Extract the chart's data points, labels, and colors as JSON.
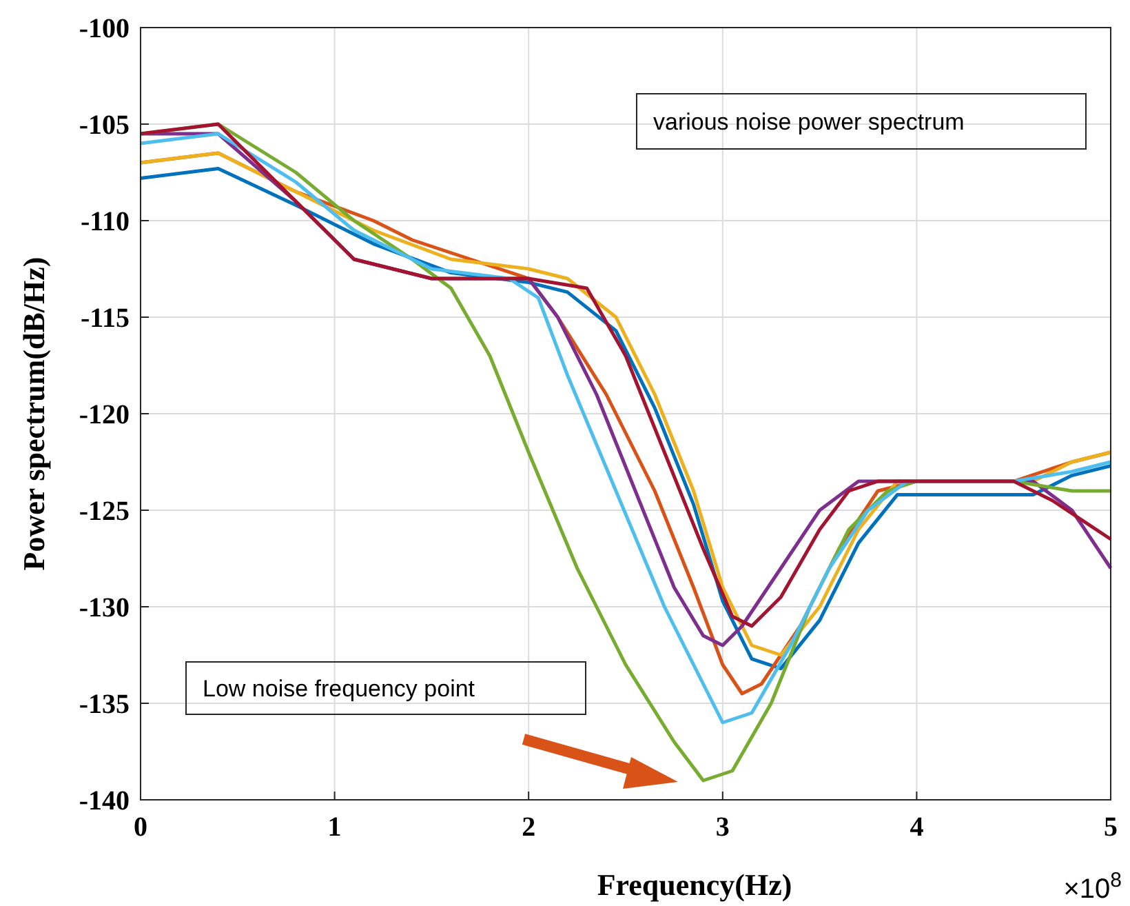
{
  "chart_data": {
    "type": "line",
    "xlabel": "Frequency(Hz)",
    "ylabel": "Power spectrum(dB/Hz)",
    "annotations": [
      "various noise power spectrum",
      "Low noise frequency point",
      "×10$^{8}$"
    ],
    "xlim": [
      0,
      5
    ],
    "xticks": [
      0,
      1,
      2,
      3,
      4,
      5
    ],
    "ylim": [
      -140,
      -100
    ],
    "yticks": [
      -140,
      -135,
      -130,
      -125,
      -120,
      -115,
      -110,
      -105,
      -100
    ],
    "grid": true,
    "line_style": "solid",
    "series": [
      {
        "color": "#0072bd",
        "x": [
          0,
          0.4,
          0.8,
          1.2,
          1.6,
          2.0,
          2.2,
          2.45,
          2.65,
          2.85,
          3.0,
          3.15,
          3.3,
          3.5,
          3.7,
          3.9,
          4.2,
          4.6,
          4.8,
          5
        ],
        "values": [
          -107.8,
          -107.3,
          -109.2,
          -111.2,
          -112.7,
          -113.2,
          -113.7,
          -115.7,
          -119.7,
          -124.7,
          -129.7,
          -132.7,
          -133.2,
          -130.7,
          -126.7,
          -124.2,
          -124.2,
          -124.2,
          -123.2,
          -122.7
        ]
      },
      {
        "color": "#d95319",
        "x": [
          0,
          0.4,
          0.8,
          1.2,
          1.4,
          1.7,
          2.0,
          2.15,
          2.4,
          2.65,
          2.85,
          3.0,
          3.1,
          3.2,
          3.4,
          3.6,
          3.8,
          4.0,
          4.5,
          4.8,
          5
        ],
        "values": [
          -107,
          -106.5,
          -108.5,
          -110,
          -111,
          -112,
          -113,
          -115,
          -119,
          -124,
          -129,
          -133,
          -134.5,
          -134,
          -131,
          -127,
          -124,
          -123.5,
          -123.5,
          -122.5,
          -122
        ]
      },
      {
        "color": "#edb120",
        "x": [
          0,
          0.4,
          0.8,
          1.2,
          1.6,
          2.0,
          2.2,
          2.45,
          2.65,
          2.85,
          3.0,
          3.15,
          3.3,
          3.5,
          3.7,
          3.9,
          4.2,
          4.6,
          4.8,
          5
        ],
        "values": [
          -107,
          -106.5,
          -108.5,
          -110.5,
          -112,
          -112.5,
          -113,
          -115,
          -119,
          -124,
          -129,
          -132,
          -132.5,
          -130,
          -126,
          -123.5,
          -123.5,
          -123.5,
          -122.5,
          -122
        ]
      },
      {
        "color": "#7e2f8e",
        "x": [
          0,
          0.4,
          0.8,
          1.1,
          1.5,
          2.0,
          2.15,
          2.35,
          2.55,
          2.75,
          2.9,
          3.0,
          3.1,
          3.3,
          3.5,
          3.7,
          4.0,
          4.6,
          4.8,
          5
        ],
        "values": [
          -105.5,
          -105.5,
          -109,
          -112,
          -113,
          -113,
          -115,
          -119,
          -124,
          -129,
          -131.5,
          -132,
          -131,
          -128,
          -125,
          -123.5,
          -123.5,
          -123.5,
          -125,
          -128
        ]
      },
      {
        "color": "#77ac30",
        "x": [
          0,
          0.4,
          0.8,
          1.1,
          1.4,
          1.6,
          1.8,
          2.0,
          2.25,
          2.5,
          2.75,
          2.9,
          3.05,
          3.25,
          3.45,
          3.65,
          3.85,
          4.0,
          4.5,
          4.8,
          5
        ],
        "values": [
          -105.5,
          -105,
          -107.5,
          -110,
          -112,
          -113.5,
          -117,
          -122,
          -128,
          -133,
          -137,
          -139,
          -138.5,
          -135,
          -130,
          -126,
          -124,
          -123.5,
          -123.5,
          -124,
          -124
        ]
      },
      {
        "color": "#4dbeee",
        "x": [
          0,
          0.4,
          0.8,
          1.1,
          1.5,
          1.9,
          2.05,
          2.2,
          2.45,
          2.7,
          2.9,
          3.0,
          3.15,
          3.35,
          3.55,
          3.75,
          3.95,
          4.5,
          4.8,
          5
        ],
        "values": [
          -106,
          -105.5,
          -108,
          -110.5,
          -112.5,
          -113,
          -114,
          -118,
          -124,
          -130,
          -134,
          -136,
          -135.5,
          -132,
          -128,
          -125,
          -123.5,
          -123.5,
          -123,
          -122.5
        ]
      },
      {
        "color": "#a2142f",
        "x": [
          0,
          0.4,
          0.8,
          1.1,
          1.5,
          2.0,
          2.3,
          2.5,
          2.7,
          2.9,
          3.05,
          3.15,
          3.3,
          3.5,
          3.65,
          3.8,
          4.5,
          4.7,
          5
        ],
        "values": [
          -105.5,
          -105,
          -109,
          -112,
          -113,
          -113,
          -113.5,
          -117,
          -122,
          -127,
          -130.5,
          -131,
          -129.5,
          -126,
          -124,
          -123.5,
          -123.5,
          -124.5,
          -126.5
        ]
      }
    ]
  }
}
